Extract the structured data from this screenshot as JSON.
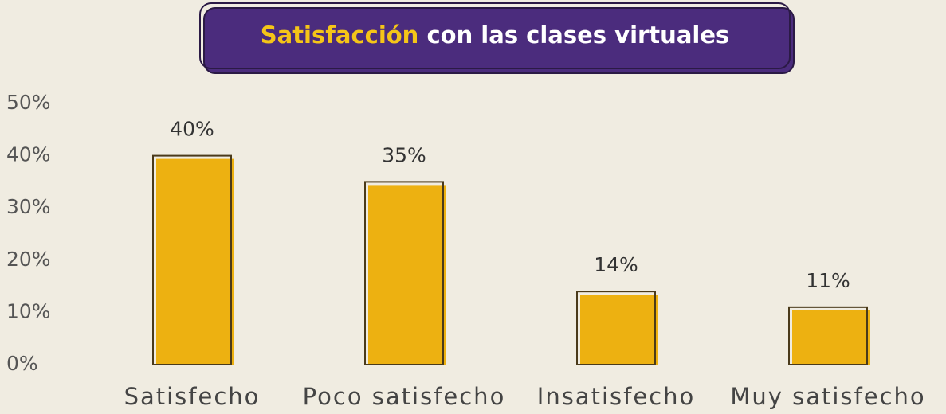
{
  "chart_data": {
    "type": "bar",
    "title": {
      "highlight": "Satisfacción",
      "rest": "con las clases virtuales"
    },
    "categories": [
      "Satisfecho",
      "Poco satisfecho",
      "Insatisfecho",
      "Muy satisfecho"
    ],
    "values": [
      40,
      35,
      14,
      11
    ],
    "value_labels": [
      "40%",
      "35%",
      "14%",
      "11%"
    ],
    "color": "#edb111",
    "ylim": [
      0,
      50
    ],
    "yticks": [
      {
        "value": 0,
        "label": "0%"
      },
      {
        "value": 10,
        "label": "10%"
      },
      {
        "value": 20,
        "label": "20%"
      },
      {
        "value": 30,
        "label": "30%"
      },
      {
        "value": 40,
        "label": "40%"
      },
      {
        "value": 50,
        "label": "50%"
      }
    ],
    "grid": false
  }
}
